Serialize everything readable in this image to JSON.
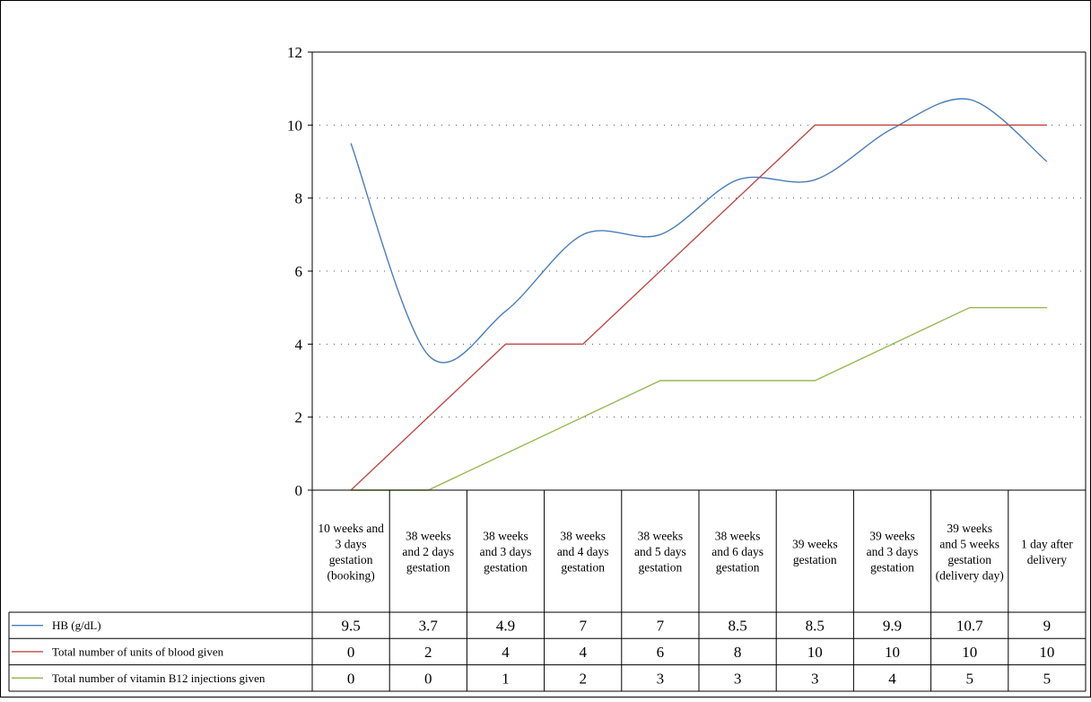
{
  "chart_data": {
    "type": "line",
    "title": "",
    "xlabel": "",
    "ylabel": "",
    "ylim": [
      0,
      12
    ],
    "yticks": [
      0,
      2,
      4,
      6,
      8,
      10,
      12
    ],
    "grid": "horizontal dotted",
    "legend": "data table below chart",
    "categories": [
      "10 weeks and 3 days gestation (booking)",
      "38 weeks and 2 days gestation",
      "38 weeks and 3 days gestation",
      "38 weeks and 4 days gestation",
      "38 weeks and 5 days gestation",
      "38 weeks and 6 days gestation",
      "39 weeks gestation",
      "39 weeks and 3 days gestation",
      "39 weeks and 5 weeks gestation (delivery day)",
      "1 day after delivery"
    ],
    "category_lines": [
      [
        "10 weeks and",
        "3 days",
        "gestation",
        "(booking)"
      ],
      [
        "38 weeks",
        "and 2 days",
        "gestation"
      ],
      [
        "38 weeks",
        "and 3 days",
        "gestation"
      ],
      [
        "38 weeks",
        "and 4 days",
        "gestation"
      ],
      [
        "38 weeks",
        "and 5 days",
        "gestation"
      ],
      [
        "38 weeks",
        "and 6 days",
        "gestation"
      ],
      [
        "39 weeks",
        "gestation"
      ],
      [
        "39 weeks",
        "and 3 days",
        "gestation"
      ],
      [
        "39 weeks",
        "and 5 weeks",
        "gestation",
        "(delivery day)"
      ],
      [
        "1 day after",
        "delivery"
      ]
    ],
    "series": [
      {
        "name": "HB (g/dL)",
        "color": "#4a7ebb",
        "smooth": true,
        "values": [
          9.5,
          3.7,
          4.9,
          7,
          7,
          8.5,
          8.5,
          9.9,
          10.7,
          9
        ]
      },
      {
        "name": "Total number of units of blood given",
        "color": "#be4b48",
        "smooth": false,
        "values": [
          0,
          2,
          4,
          4,
          6,
          8,
          10,
          10,
          10,
          10
        ]
      },
      {
        "name": "Total number of vitamin B12 injections given",
        "color": "#98b954",
        "smooth": false,
        "values": [
          0,
          0,
          1,
          2,
          3,
          3,
          3,
          4,
          5,
          5
        ]
      }
    ]
  }
}
